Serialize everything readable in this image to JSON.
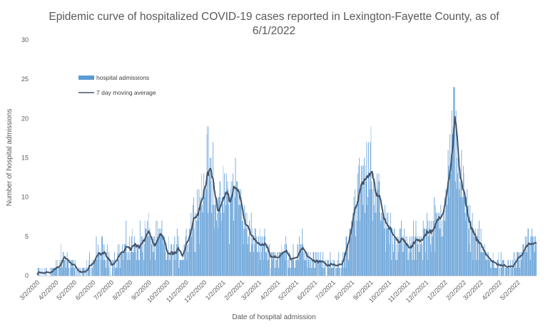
{
  "chart_data": {
    "type": "bar",
    "title_line1": "Epidemic curve of hospitalized COVID-19 cases reported in Lexington-Fayette County, as of",
    "title_line2": "6/1/2022",
    "xlabel": "Date of hospital admission",
    "ylabel": "Number of hospital admissions",
    "ylim": [
      0,
      30
    ],
    "yticks": [
      "0",
      "5",
      "10",
      "15",
      "20",
      "25",
      "30"
    ],
    "x_start_date": "3/1/2020",
    "x_end_date": "5/31/2022",
    "xticks": [
      "3/2/2020",
      "4/2/2020",
      "5/2/2020",
      "6/2/2020",
      "7/2/2020",
      "8/2/2020",
      "9/2/2020",
      "10/2/2020",
      "11/2/2020",
      "12/2/2020",
      "1/2/2021",
      "2/2/2021",
      "3/2/2021",
      "4/2/2021",
      "5/2/2021",
      "6/2/2021",
      "7/2/2021",
      "8/2/2021",
      "9/2/2021",
      "10/2/2021",
      "11/2/2021",
      "12/2/2021",
      "1/2/2022",
      "2/2/2022",
      "3/2/2022",
      "4/2/2022",
      "5/2/2022"
    ],
    "grid": false,
    "legend_position": "top-left",
    "series": [
      {
        "name": "hospital admissions",
        "type": "bar",
        "color": "#5B9BD5"
      },
      {
        "name": "7 day moving average",
        "type": "line",
        "color": "#44546A"
      }
    ],
    "moving_average_points": [
      {
        "date": "3/5/2020",
        "value": 0.2
      },
      {
        "date": "3/20/2020",
        "value": 0.5
      },
      {
        "date": "4/5/2020",
        "value": 1.0
      },
      {
        "date": "4/15/2020",
        "value": 2.4
      },
      {
        "date": "4/28/2020",
        "value": 1.5
      },
      {
        "date": "5/10/2020",
        "value": 0.4
      },
      {
        "date": "5/20/2020",
        "value": 0.4
      },
      {
        "date": "6/5/2020",
        "value": 2.5
      },
      {
        "date": "6/15/2020",
        "value": 2.8
      },
      {
        "date": "7/1/2020",
        "value": 1.6
      },
      {
        "date": "7/15/2020",
        "value": 3.0
      },
      {
        "date": "7/25/2020",
        "value": 3.4
      },
      {
        "date": "8/5/2020",
        "value": 3.8
      },
      {
        "date": "8/20/2020",
        "value": 4.1
      },
      {
        "date": "8/28/2020",
        "value": 5.5
      },
      {
        "date": "9/10/2020",
        "value": 3.7
      },
      {
        "date": "9/20/2020",
        "value": 5.0
      },
      {
        "date": "10/2/2020",
        "value": 2.5
      },
      {
        "date": "10/15/2020",
        "value": 3.0
      },
      {
        "date": "10/25/2020",
        "value": 2.9
      },
      {
        "date": "11/5/2020",
        "value": 5.3
      },
      {
        "date": "11/15/2020",
        "value": 8.0
      },
      {
        "date": "11/28/2020",
        "value": 10.5
      },
      {
        "date": "12/5/2020",
        "value": 13.0
      },
      {
        "date": "12/15/2020",
        "value": 12.0
      },
      {
        "date": "12/25/2020",
        "value": 7.7
      },
      {
        "date": "1/5/2021",
        "value": 10.7
      },
      {
        "date": "1/12/2021",
        "value": 8.8
      },
      {
        "date": "1/18/2021",
        "value": 12.0
      },
      {
        "date": "1/28/2021",
        "value": 9.5
      },
      {
        "date": "2/5/2021",
        "value": 6.5
      },
      {
        "date": "2/15/2021",
        "value": 5.5
      },
      {
        "date": "2/25/2021",
        "value": 3.8
      },
      {
        "date": "3/10/2021",
        "value": 4.0
      },
      {
        "date": "3/20/2021",
        "value": 2.5
      },
      {
        "date": "4/1/2021",
        "value": 2.5
      },
      {
        "date": "4/15/2021",
        "value": 3.0
      },
      {
        "date": "4/25/2021",
        "value": 2.3
      },
      {
        "date": "5/10/2021",
        "value": 3.1
      },
      {
        "date": "5/20/2021",
        "value": 2.6
      },
      {
        "date": "6/1/2021",
        "value": 1.7
      },
      {
        "date": "6/15/2021",
        "value": 1.5
      },
      {
        "date": "7/1/2021",
        "value": 1.2
      },
      {
        "date": "7/15/2021",
        "value": 1.6
      },
      {
        "date": "7/25/2021",
        "value": 4.5
      },
      {
        "date": "8/5/2021",
        "value": 9.0
      },
      {
        "date": "8/15/2021",
        "value": 11.0
      },
      {
        "date": "8/28/2021",
        "value": 13.0
      },
      {
        "date": "9/8/2021",
        "value": 11.5
      },
      {
        "date": "9/15/2021",
        "value": 9.0
      },
      {
        "date": "9/22/2021",
        "value": 7.0
      },
      {
        "date": "10/5/2021",
        "value": 5.5
      },
      {
        "date": "10/20/2021",
        "value": 4.6
      },
      {
        "date": "11/1/2021",
        "value": 3.4
      },
      {
        "date": "11/15/2021",
        "value": 4.5
      },
      {
        "date": "12/1/2021",
        "value": 5.4
      },
      {
        "date": "12/15/2021",
        "value": 6.3
      },
      {
        "date": "12/25/2021",
        "value": 7.5
      },
      {
        "date": "1/3/2022",
        "value": 12.0
      },
      {
        "date": "1/10/2022",
        "value": 14.0
      },
      {
        "date": "1/17/2022",
        "value": 19.9
      },
      {
        "date": "1/25/2022",
        "value": 13.0
      },
      {
        "date": "2/5/2022",
        "value": 7.3
      },
      {
        "date": "2/15/2022",
        "value": 5.7
      },
      {
        "date": "2/25/2022",
        "value": 4.0
      },
      {
        "date": "3/10/2022",
        "value": 2.4
      },
      {
        "date": "3/20/2022",
        "value": 1.8
      },
      {
        "date": "4/1/2022",
        "value": 1.3
      },
      {
        "date": "4/10/2022",
        "value": 1.0
      },
      {
        "date": "4/22/2022",
        "value": 1.2
      },
      {
        "date": "5/5/2022",
        "value": 2.5
      },
      {
        "date": "5/15/2022",
        "value": 3.8
      },
      {
        "date": "5/25/2022",
        "value": 3.6
      },
      {
        "date": "5/31/2022",
        "value": 3.7
      }
    ],
    "notable_daily_peaks": [
      {
        "date": "12/2020",
        "value": 18
      },
      {
        "date": "8/2021",
        "value": 17
      },
      {
        "date": "9/2021",
        "value": 19
      },
      {
        "date": "1/2022",
        "value": 24
      }
    ]
  }
}
